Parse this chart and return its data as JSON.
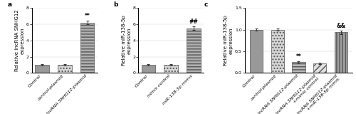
{
  "panel_a": {
    "categories": [
      "Control",
      "control-plasmid",
      "lncRNA SNHG12-plasmid"
    ],
    "values": [
      1.0,
      1.0,
      6.2
    ],
    "errors": [
      0.06,
      0.06,
      0.22
    ],
    "ylabel": "Relative lncRNA SNHG12\nexpression",
    "ylim": [
      0,
      8
    ],
    "yticks": [
      0,
      2,
      4,
      6,
      8
    ],
    "sig_labels": [
      "",
      "",
      "**"
    ],
    "label": "a",
    "bar_colors": [
      "#999999",
      "#d8d8d8",
      "#b0b0b0"
    ],
    "bar_hatches": [
      "",
      "....",
      "----"
    ]
  },
  "panel_b": {
    "categories": [
      "Control",
      "mimic control",
      "miR-138-5p mimic"
    ],
    "values": [
      1.0,
      1.0,
      5.5
    ],
    "errors": [
      0.06,
      0.06,
      0.22
    ],
    "ylabel": "Relative miR-138-5p\nexpression",
    "ylim": [
      0,
      8
    ],
    "yticks": [
      0,
      2,
      4,
      6,
      8
    ],
    "sig_labels": [
      "",
      "",
      "##"
    ],
    "label": "b",
    "bar_colors": [
      "#999999",
      "#d8d8d8",
      "#b0b0b0"
    ],
    "bar_hatches": [
      "",
      "....",
      "----"
    ]
  },
  "panel_c": {
    "categories": [
      "Control",
      "control-plasmid",
      "lncRNA SNHG12-plasmid",
      "lncRNA SNHG12-plasmid\n+mimic control",
      "lncRNA SNHG12-plasmid\n+miR-138-5p mimic"
    ],
    "values": [
      1.0,
      1.0,
      0.25,
      0.22,
      0.94
    ],
    "errors": [
      0.03,
      0.03,
      0.02,
      0.02,
      0.04
    ],
    "ylabel": "Relative miR-138-5p\nexpression",
    "ylim": [
      0,
      1.5
    ],
    "yticks": [
      0.0,
      0.5,
      1.0,
      1.5
    ],
    "sig_labels": [
      "",
      "",
      "**",
      "",
      "&&"
    ],
    "label": "c",
    "bar_colors": [
      "#999999",
      "#d8d8d8",
      "#b8b8b8",
      "#e0e0e0",
      "#a0a0a0"
    ],
    "bar_hatches": [
      "",
      "....",
      "----",
      "////",
      "||||"
    ]
  },
  "font_size": 5.0,
  "tick_font_size": 4.5,
  "label_font_size": 6.5,
  "sig_font_size": 5.5
}
